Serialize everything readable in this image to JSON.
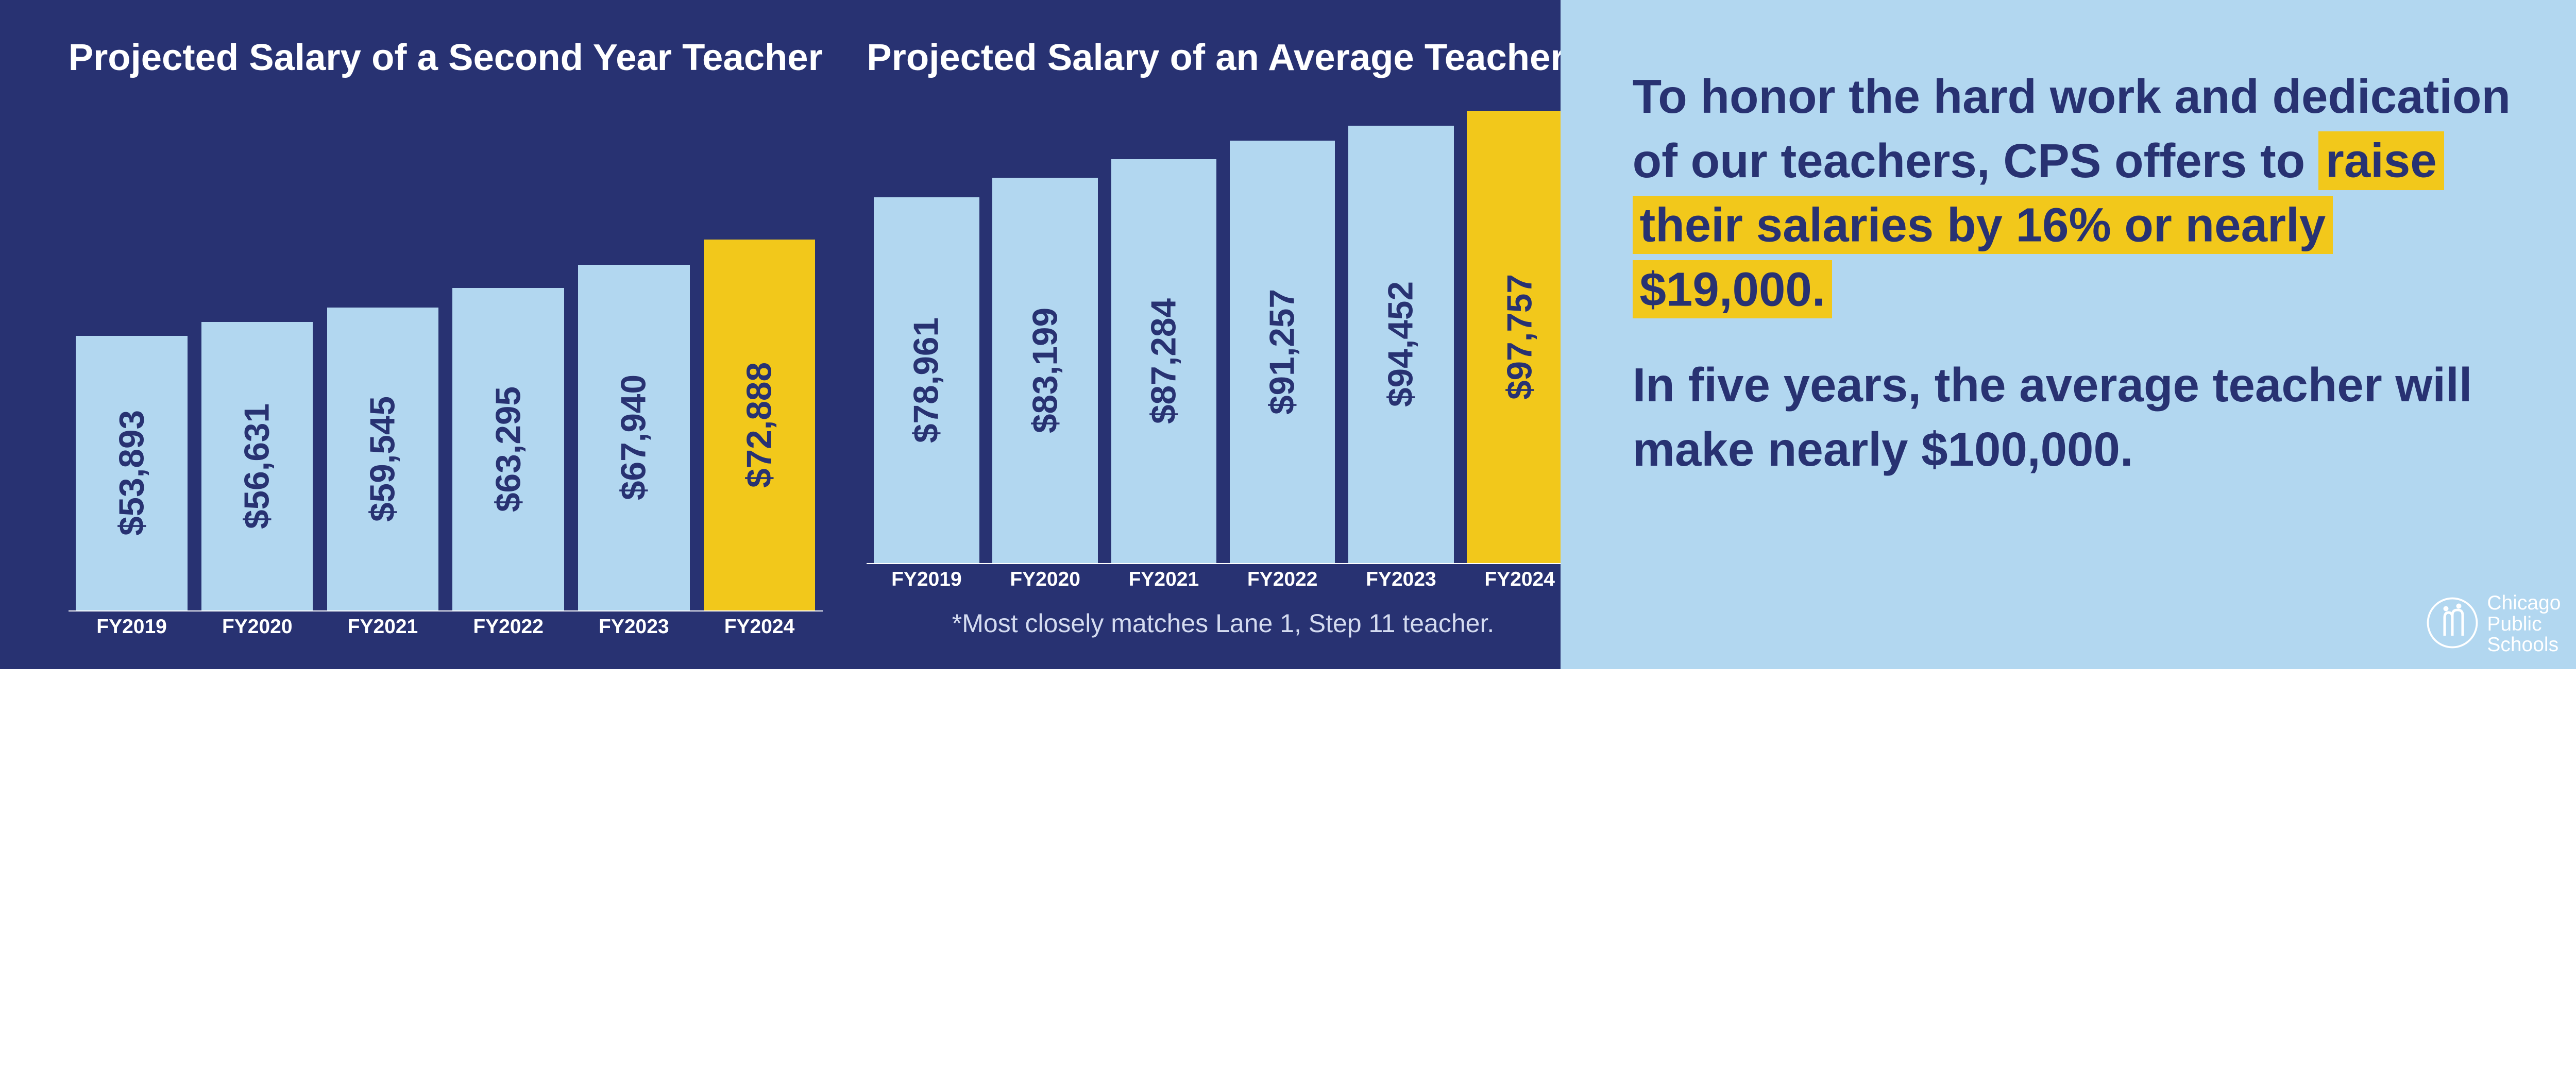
{
  "colors": {
    "left_bg": "#283272",
    "right_bg": "#b2d7f0",
    "bar_default": "#b2d7f0",
    "bar_highlight": "#f2c81b",
    "text_navy": "#283272",
    "highlight_bg": "#f2c81b",
    "white": "#ffffff"
  },
  "chart1": {
    "title": "Projected Salary of a Second Year Teacher",
    "type": "bar",
    "ymax": 100000,
    "bar_label_fontsize_vw": 1.35,
    "categories": [
      "FY2019",
      "FY2020",
      "FY2021",
      "FY2022",
      "FY2023",
      "FY2024"
    ],
    "values": [
      53893,
      56631,
      59545,
      63295,
      67940,
      72888
    ],
    "labels": [
      "$53,893",
      "$56,631",
      "$59,545",
      "$63,295",
      "$67,940",
      "$72,888"
    ],
    "highlight_index": 5
  },
  "chart2": {
    "title": "Projected Salary of an Average Teacher*",
    "type": "bar",
    "ymax": 100000,
    "bar_label_fontsize_vw": 1.35,
    "categories": [
      "FY2019",
      "FY2020",
      "FY2021",
      "FY2022",
      "FY2023",
      "FY2024"
    ],
    "values": [
      78961,
      83199,
      87284,
      91257,
      94452,
      97757
    ],
    "labels": [
      "$78,961",
      "$83,199",
      "$87,284",
      "$91,257",
      "$94,452",
      "$97,757"
    ],
    "highlight_index": 5,
    "footnote": "*Most closely matches Lane 1, Step 11 teacher."
  },
  "copy": {
    "p1_before": "To honor the hard work and dedication of our teachers, CPS offers to ",
    "p1_hl": "raise their salaries by 16% or nearly $19,000.",
    "p2": "In five years, the average teacher will make nearly $100,000."
  },
  "logo": {
    "line1": "Chicago",
    "line2": "Public",
    "line3": "Schools"
  }
}
